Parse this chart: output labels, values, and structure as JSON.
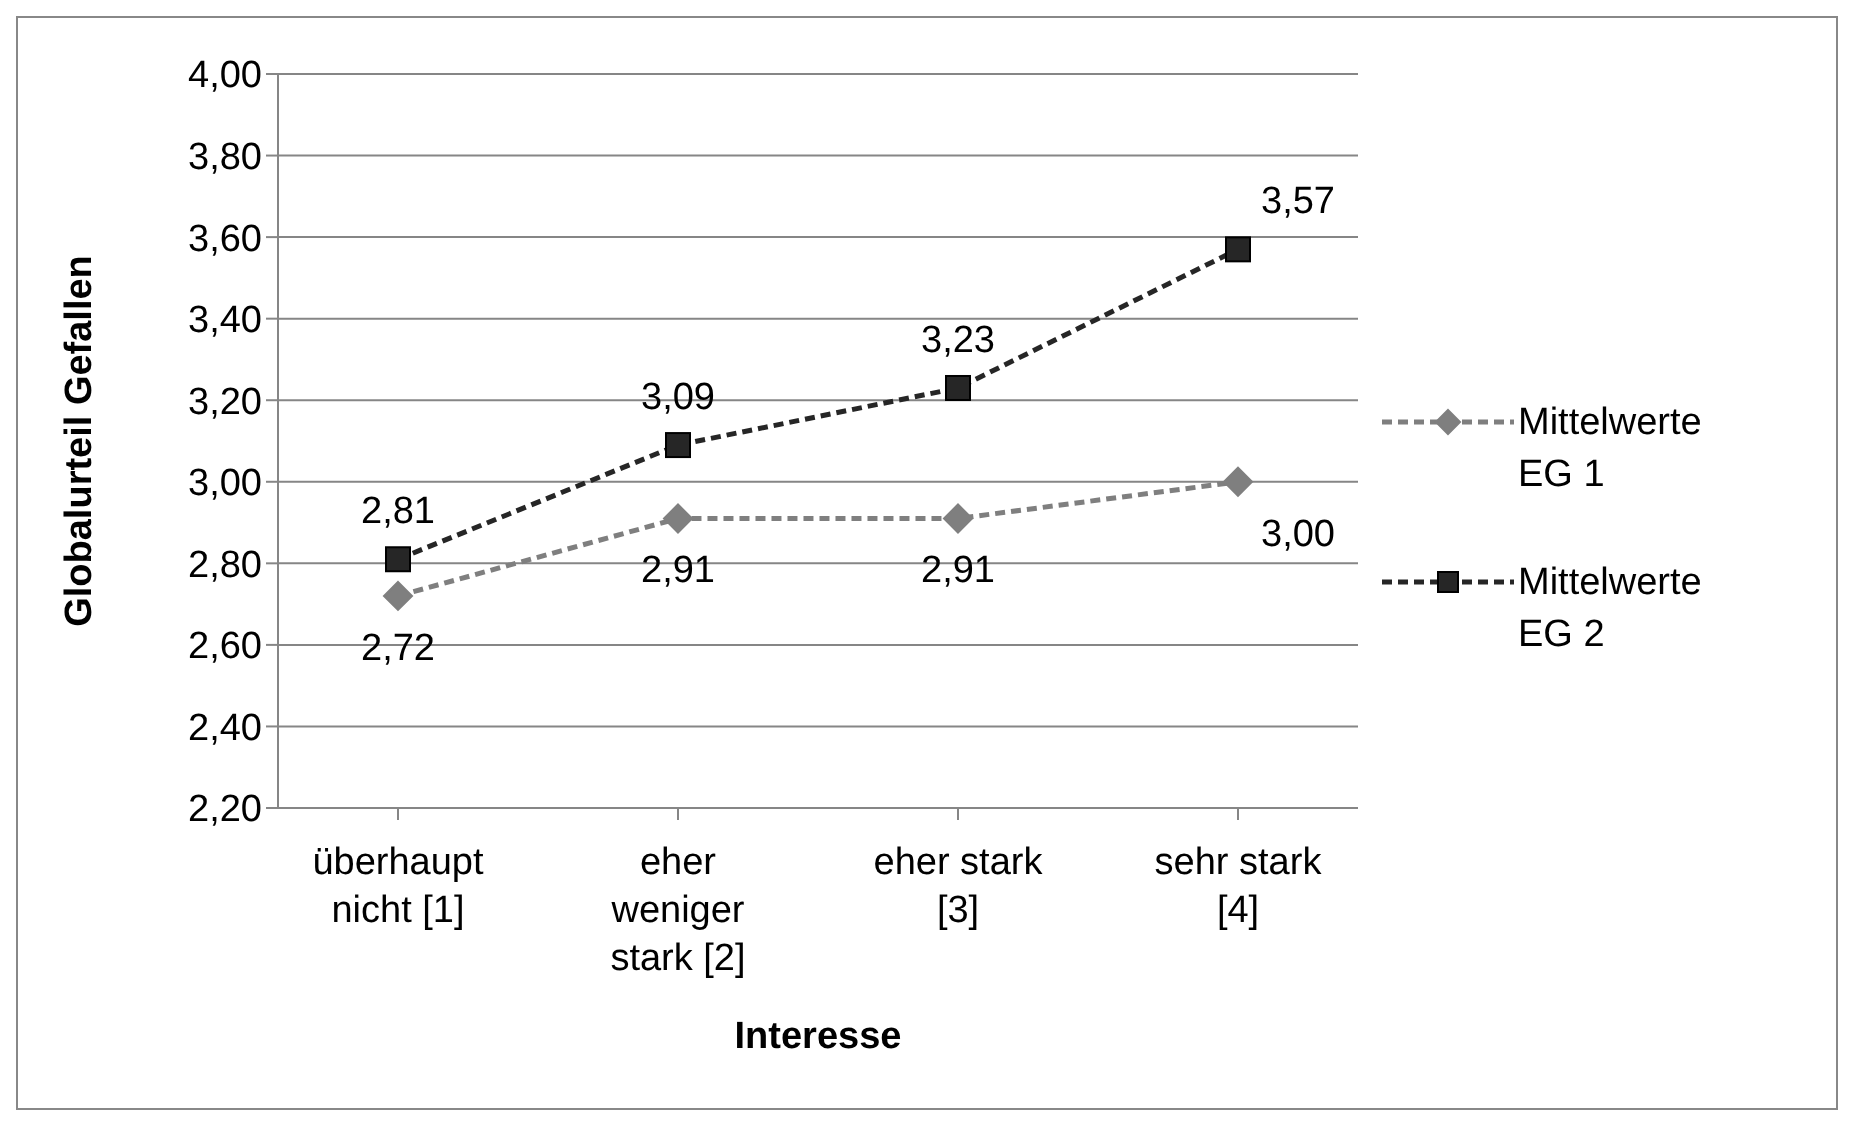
{
  "chart_data": {
    "type": "line",
    "xlabel": "Interesse",
    "ylabel": "Globalurteil Gefallen",
    "categories": [
      "überhaupt nicht [1]",
      "eher weniger stark [2]",
      "eher stark [3]",
      "sehr stark [4]"
    ],
    "series": [
      {
        "name": "Mittelwerte EG 1",
        "color": "#7f7f7f",
        "marker": "diamond",
        "values": [
          2.72,
          2.91,
          2.91,
          3.0
        ],
        "value_labels": [
          "2,72",
          "2,91",
          "2,91",
          "3,00"
        ]
      },
      {
        "name": "Mittelwerte EG 2",
        "color": "#262626",
        "marker": "square",
        "values": [
          2.81,
          3.09,
          3.23,
          3.57
        ],
        "value_labels": [
          "2,81",
          "3,09",
          "3,23",
          "3,57"
        ]
      }
    ],
    "ylim": [
      2.2,
      4.0
    ],
    "yticks": [
      {
        "value": 2.2,
        "label": "2,20"
      },
      {
        "value": 2.4,
        "label": "2,40"
      },
      {
        "value": 2.6,
        "label": "2,60"
      },
      {
        "value": 2.8,
        "label": "2,80"
      },
      {
        "value": 3.0,
        "label": "3,00"
      },
      {
        "value": 3.2,
        "label": "3,20"
      },
      {
        "value": 3.4,
        "label": "3,40"
      },
      {
        "value": 3.6,
        "label": "3,60"
      },
      {
        "value": 3.8,
        "label": "3,80"
      },
      {
        "value": 4.0,
        "label": "4,00"
      }
    ],
    "grid": "y",
    "legend": "right",
    "line_style": "dashed"
  }
}
